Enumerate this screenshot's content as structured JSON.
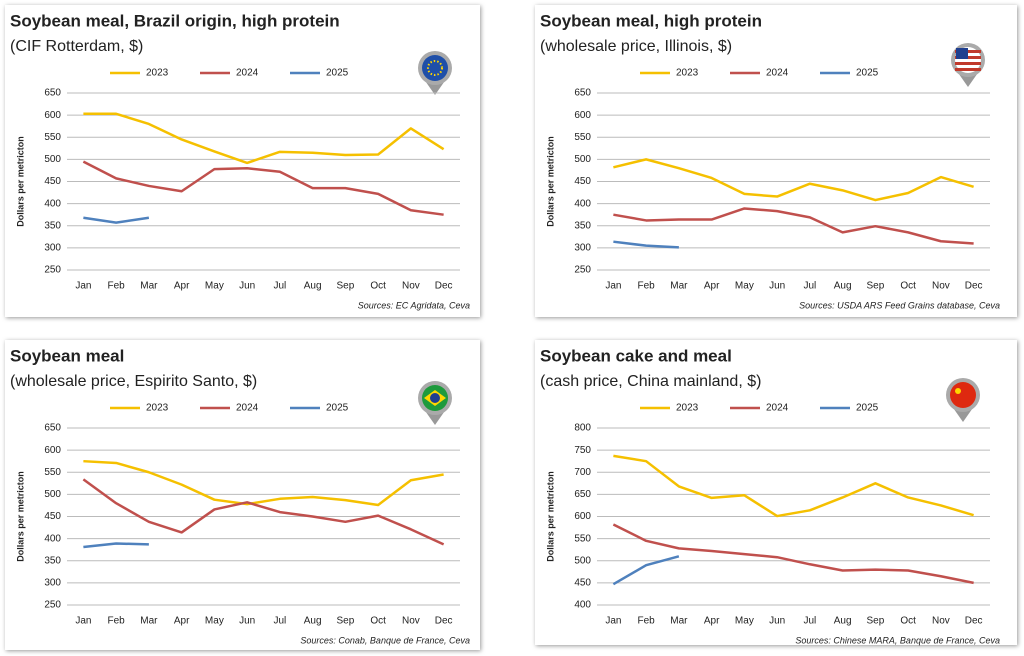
{
  "chart_data": [
    {
      "type": "line",
      "title": "Soybean meal, Brazil origin, high protein",
      "subtitle": "(CIF Rotterdam, $)",
      "y_label": "Dollars per metricton",
      "source": "Sources: EC Agridata, Ceva",
      "categories": [
        "Jan",
        "Feb",
        "Mar",
        "Apr",
        "May",
        "Jun",
        "Jul",
        "Aug",
        "Sep",
        "Oct",
        "Nov",
        "Dec"
      ],
      "series": [
        {
          "name": "2023",
          "color": "#f5c000",
          "values": [
            603,
            603,
            580,
            545,
            518,
            492,
            517,
            515,
            510,
            511,
            570,
            523
          ]
        },
        {
          "name": "2024",
          "color": "#c0504d",
          "values": [
            495,
            457,
            440,
            428,
            478,
            480,
            472,
            435,
            435,
            422,
            385,
            375
          ]
        },
        {
          "name": "2025",
          "color": "#4f81bd",
          "values": [
            368,
            357,
            368,
            null,
            null,
            null,
            null,
            null,
            null,
            null,
            null,
            null
          ]
        }
      ],
      "ylim": [
        250,
        650
      ],
      "yticks": [
        250,
        300,
        350,
        400,
        450,
        500,
        550,
        600,
        650
      ],
      "grid": true
    },
    {
      "type": "line",
      "title": "Soybean meal, high protein",
      "subtitle": "(wholesale price, Illinois, $)",
      "y_label": "Dollars per metricton",
      "source": "Sources: USDA ARS Feed Grains database, Ceva",
      "categories": [
        "Jan",
        "Feb",
        "Mar",
        "Apr",
        "May",
        "Jun",
        "Jul",
        "Aug",
        "Sep",
        "Oct",
        "Nov",
        "Dec"
      ],
      "series": [
        {
          "name": "2023",
          "color": "#f5c000",
          "values": [
            482,
            500,
            480,
            458,
            422,
            416,
            445,
            430,
            408,
            424,
            460,
            438
          ]
        },
        {
          "name": "2024",
          "color": "#c0504d",
          "values": [
            375,
            362,
            364,
            364,
            389,
            383,
            369,
            335,
            349,
            335,
            315,
            310
          ]
        },
        {
          "name": "2025",
          "color": "#4f81bd",
          "values": [
            314,
            305,
            301,
            null,
            null,
            null,
            null,
            null,
            null,
            null,
            null,
            null
          ]
        }
      ],
      "ylim": [
        250,
        650
      ],
      "yticks": [
        250,
        300,
        350,
        400,
        450,
        500,
        550,
        600,
        650
      ],
      "grid": true
    },
    {
      "type": "line",
      "title": "Soybean meal",
      "subtitle": "(wholesale price, Espirito Santo, $)",
      "y_label": "Dollars per metricton",
      "source": "Sources: Conab, Banque de France, Ceva",
      "categories": [
        "Jan",
        "Feb",
        "Mar",
        "Apr",
        "May",
        "Jun",
        "Jul",
        "Aug",
        "Sep",
        "Oct",
        "Nov",
        "Dec"
      ],
      "series": [
        {
          "name": "2023",
          "color": "#f5c000",
          "values": [
            575,
            571,
            550,
            522,
            488,
            478,
            490,
            494,
            487,
            476,
            532,
            545
          ]
        },
        {
          "name": "2024",
          "color": "#c0504d",
          "values": [
            534,
            480,
            438,
            414,
            466,
            482,
            460,
            450,
            438,
            452,
            421,
            387
          ]
        },
        {
          "name": "2025",
          "color": "#4f81bd",
          "values": [
            381,
            389,
            387,
            null,
            null,
            null,
            null,
            null,
            null,
            null,
            null,
            null
          ]
        }
      ],
      "ylim": [
        250,
        650
      ],
      "yticks": [
        250,
        300,
        350,
        400,
        450,
        500,
        550,
        600,
        650
      ],
      "grid": true
    },
    {
      "type": "line",
      "title": "Soybean cake and meal",
      "subtitle": "(cash price, China mainland, $)",
      "y_label": "Dollars per metricton",
      "source": "Sources: Chinese MARA, Banque de France, Ceva",
      "categories": [
        "Jan",
        "Feb",
        "Mar",
        "Apr",
        "May",
        "Jun",
        "Jul",
        "Aug",
        "Sep",
        "Oct",
        "Nov",
        "Dec"
      ],
      "series": [
        {
          "name": "2023",
          "color": "#f5c000",
          "values": [
            737,
            725,
            668,
            642,
            648,
            601,
            614,
            643,
            675,
            643,
            625,
            603
          ]
        },
        {
          "name": "2024",
          "color": "#c0504d",
          "values": [
            582,
            545,
            528,
            522,
            515,
            508,
            492,
            478,
            480,
            478,
            465,
            450
          ]
        },
        {
          "name": "2025",
          "color": "#4f81bd",
          "values": [
            447,
            490,
            510,
            null,
            null,
            null,
            null,
            null,
            null,
            null,
            null,
            null
          ]
        }
      ],
      "ylim": [
        400,
        800
      ],
      "yticks": [
        400,
        450,
        500,
        550,
        600,
        650,
        700,
        750,
        800
      ],
      "grid": true
    }
  ]
}
